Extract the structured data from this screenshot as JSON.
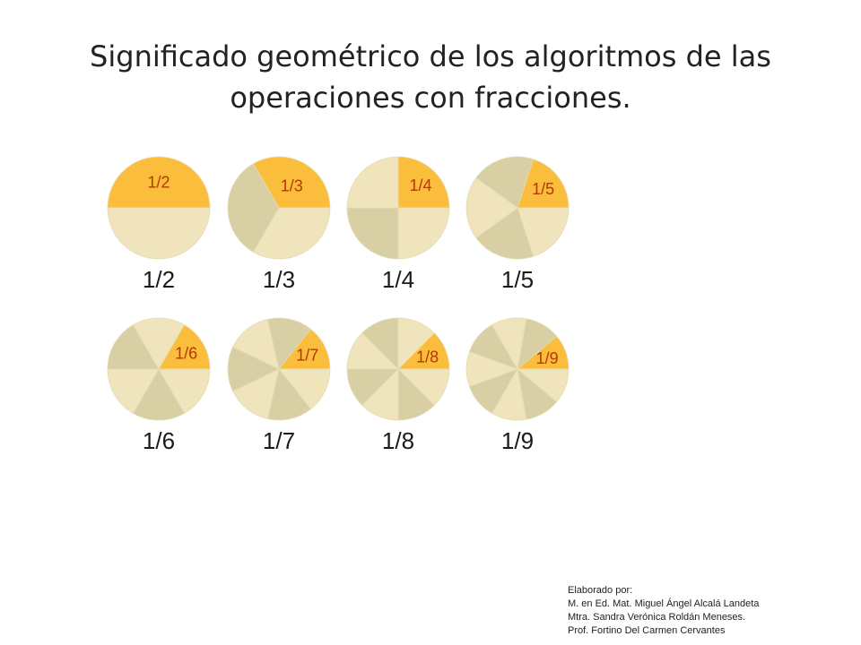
{
  "slide": {
    "title_line1": "Significado geométrico de los algoritmos de las",
    "title_line2": "operaciones con fracciones."
  },
  "colors": {
    "highlight": "#fbbd3c",
    "light": "#efe4bb",
    "dark": "#d8cfa4",
    "border": "#e6dcb5",
    "slice_label": "#b33a00"
  },
  "pies": [
    {
      "denominator": 2,
      "label": "1/2",
      "slice_label": "1/2"
    },
    {
      "denominator": 3,
      "label": "1/3",
      "slice_label": "1/3"
    },
    {
      "denominator": 4,
      "label": "1/4",
      "slice_label": "1/4"
    },
    {
      "denominator": 5,
      "label": "1/5",
      "slice_label": "1/5"
    },
    {
      "denominator": 6,
      "label": "1/6",
      "slice_label": "1/6"
    },
    {
      "denominator": 7,
      "label": "1/7",
      "slice_label": "1/7"
    },
    {
      "denominator": 8,
      "label": "1/8",
      "slice_label": "1/8"
    },
    {
      "denominator": 9,
      "label": "1/9",
      "slice_label": "1/9"
    }
  ],
  "credits": {
    "line1": "Elaborado por:",
    "line2": "M. en Ed. Mat. Miguel Ángel Alcalá Landeta",
    "line3": "Mtra. Sandra Verónica Roldán Meneses.",
    "line4": "Prof. Fortino Del Carmen Cervantes"
  }
}
